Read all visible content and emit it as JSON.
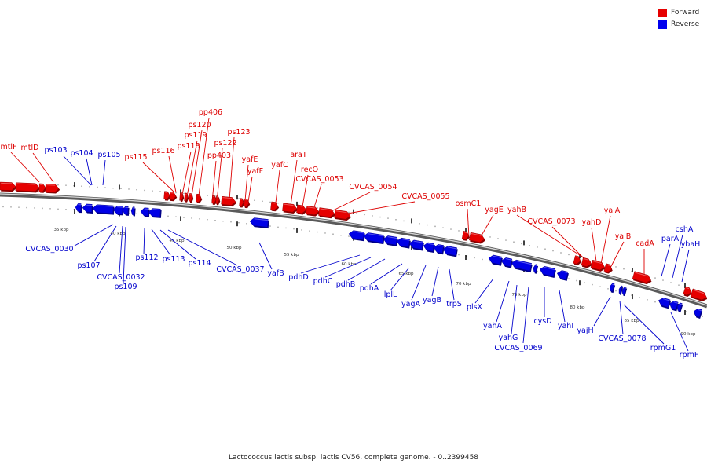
{
  "legend": {
    "forward_label": "Forward",
    "reverse_label": "Reverse",
    "forward_color": "#ff0000",
    "reverse_color": "#0000ff"
  },
  "caption": "Lactococcus lactis subsp. lactis CV56, complete genome. - 0..2399458",
  "scale": {
    "tick_labels": [
      "35 kbp",
      "40 kbp",
      "45 kbp",
      "50 kbp",
      "55 kbp",
      "60 kbp",
      "65 kbp",
      "70 kbp",
      "75 kbp",
      "80 kbp",
      "85 kbp",
      "90 kbp"
    ]
  },
  "forward_genes": [
    "mtlF",
    "mtlD",
    "ps115",
    "ps116",
    "ps118",
    "ps119",
    "ps120",
    "pp406",
    "pp403",
    "ps122",
    "ps123",
    "yafE",
    "yafF",
    "yafC",
    "araT",
    "recO",
    "CVCAS_0053",
    "CVCAS_0054",
    "CVCAS_0055",
    "osmC1",
    "yagE",
    "yahB",
    "CVCAS_0073",
    "yahD",
    "yaiA",
    "yaiB",
    "cadA"
  ],
  "reverse_genes": [
    "ps103",
    "ps104",
    "ps105",
    "CVCAS_0030",
    "ps107",
    "CVCAS_0032",
    "ps109",
    "ps112",
    "ps113",
    "ps114",
    "CVCAS_0037",
    "yafB",
    "pdhD",
    "pdhC",
    "pdhB",
    "pdhA",
    "lplL",
    "yagA",
    "yagB",
    "trpS",
    "plsX",
    "yahA",
    "yahG",
    "CVCAS_0069",
    "cysD",
    "yahI",
    "yajH",
    "CVCAS_0078",
    "rpmG1",
    "rpmF",
    "parA",
    "cshA",
    "ybaH"
  ]
}
